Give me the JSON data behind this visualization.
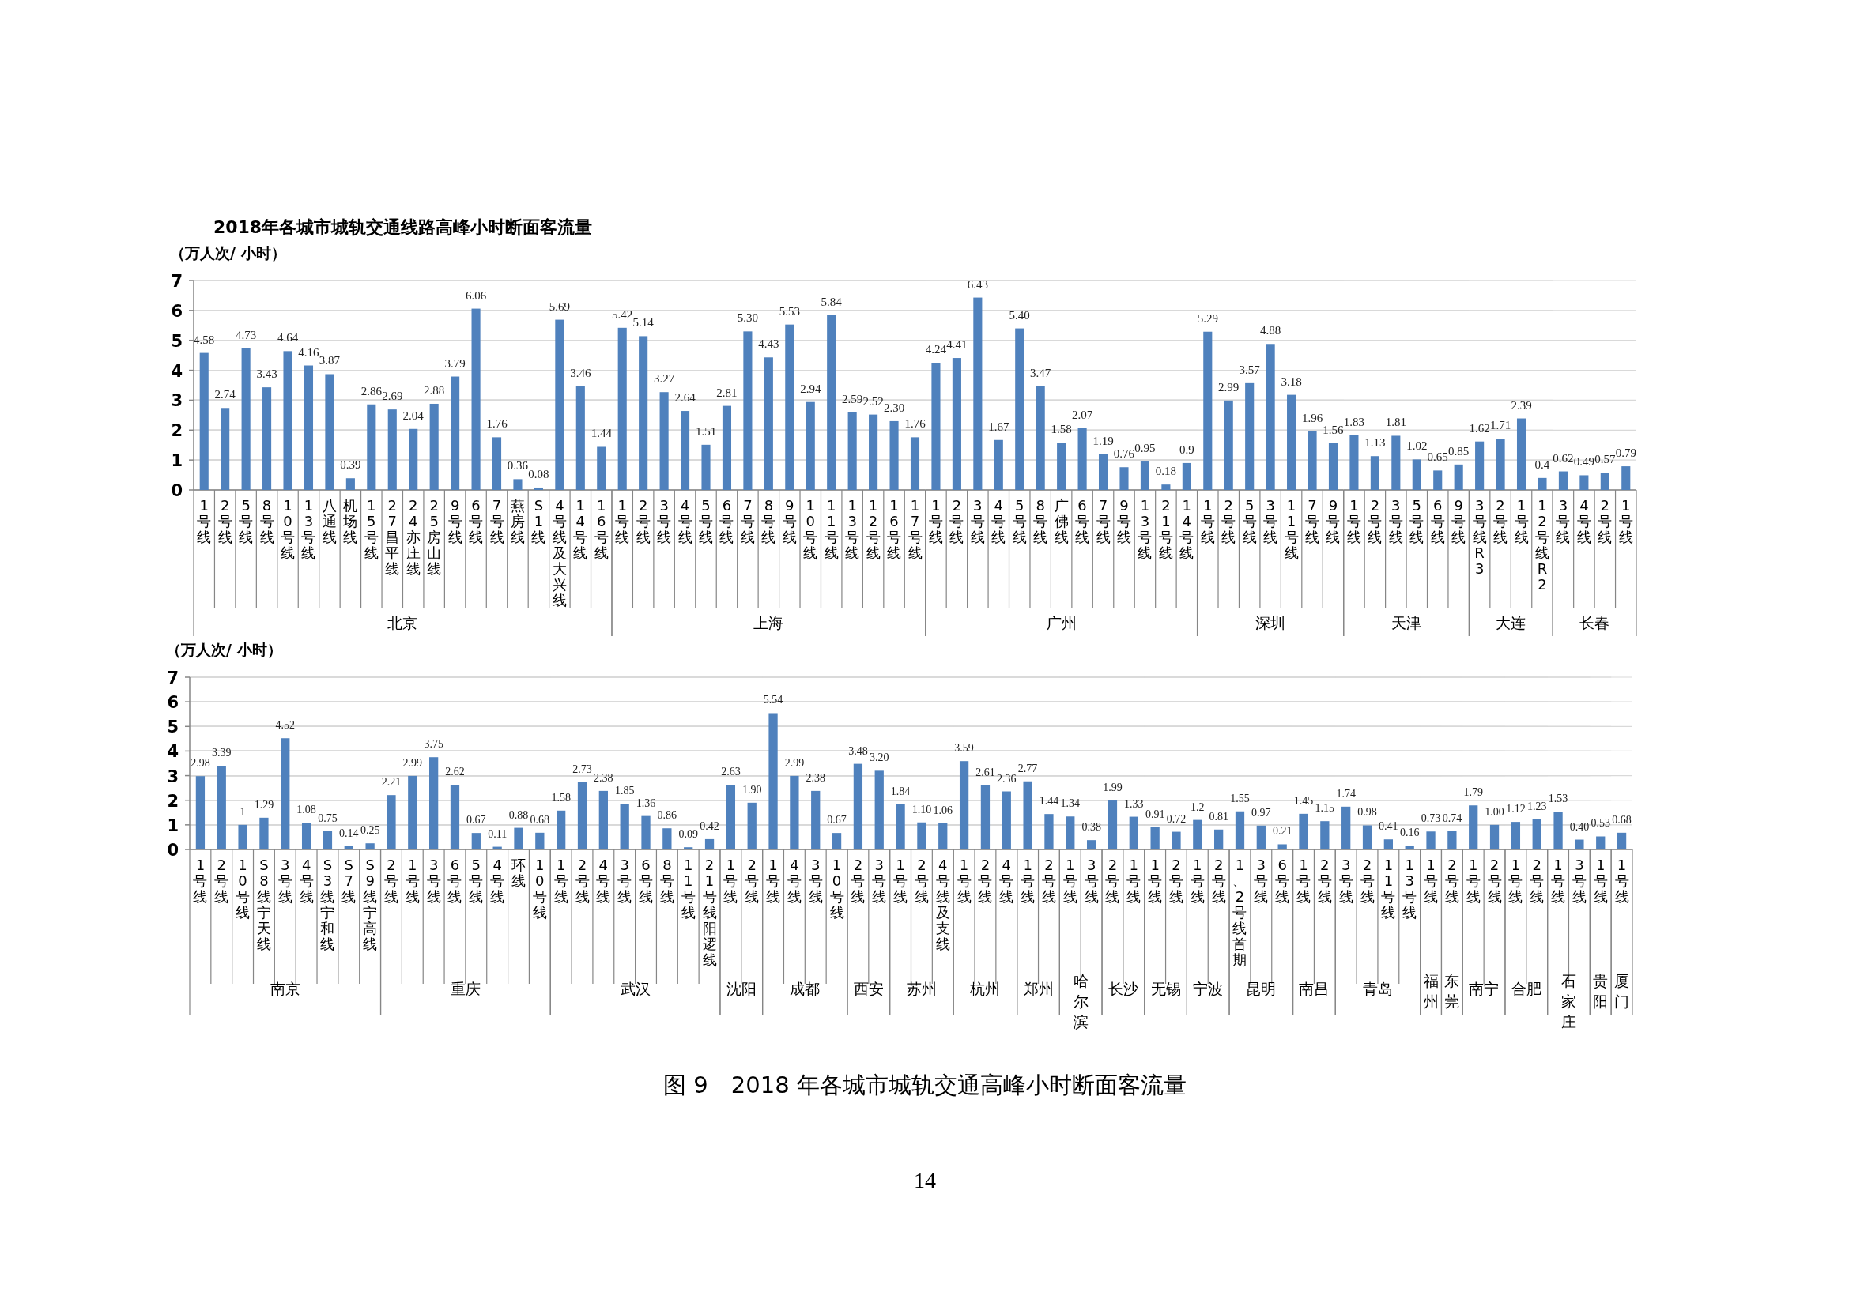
{
  "chart_data": [
    {
      "type": "bar",
      "title": "2018年各城市城轨交通线路高峰小时断面客流量",
      "ylabel": "（万人次/ 小时）",
      "xlabel": "北京",
      "color": "#4f81bd",
      "ylim": [
        0,
        7
      ],
      "yticks": [
        0,
        1,
        2,
        3,
        4,
        5,
        6,
        7
      ],
      "grid": "y",
      "categories": [
        "1号线",
        "2号线",
        "5号线",
        "8号线",
        "10号线",
        "13号线",
        "八通线",
        "机场线",
        "15号线",
        "27昌平线",
        "24亦庄线",
        "25房山线",
        "9号线",
        "6号线",
        "7号线",
        "燕房线",
        "S1线",
        "4号线及大兴线",
        "14号线",
        "16号线"
      ],
      "values": [
        4.58,
        2.74,
        4.73,
        3.43,
        4.64,
        4.16,
        3.87,
        0.39,
        2.86,
        2.69,
        2.04,
        2.88,
        3.79,
        6.06,
        1.76,
        0.36,
        0.08,
        5.69,
        3.46,
        1.44
      ],
      "value_labels": [
        "4.58",
        "2.74",
        "4.73",
        "3.43",
        "4.64",
        "4.16",
        "3.87",
        "0.39",
        "2.86",
        "2.69",
        "2.04",
        "2.88",
        "3.79",
        "6.06",
        "1.76",
        "0.36",
        "0.08",
        "5.69",
        "3.46",
        "1.44"
      ]
    },
    {
      "type": "bar",
      "xlabel": "上海",
      "color": "#4f81bd",
      "ylim": [
        0,
        7
      ],
      "yticks": [
        0,
        1,
        2,
        3,
        4,
        5,
        6,
        7
      ],
      "grid": "y",
      "tick_labels": "x",
      "categories": [
        "1号线",
        "2号线",
        "3号线",
        "4号线",
        "5号线",
        "6号线",
        "7号线",
        "8号线",
        "9号线",
        "10号线",
        "11号线",
        "13号线",
        "12号线",
        "16号线",
        "17号线"
      ],
      "values": [
        5.42,
        5.14,
        3.27,
        2.64,
        1.51,
        2.81,
        5.3,
        4.43,
        5.53,
        2.94,
        5.84,
        2.59,
        2.52,
        2.3,
        1.76
      ],
      "value_labels": [
        "5.42",
        "5.14",
        "3.27",
        "2.64",
        "1.51",
        "2.81",
        "5.30",
        "4.43",
        "5.53",
        "2.94",
        "5.84",
        "2.59",
        "2.52",
        "2.30",
        "1.76"
      ]
    },
    {
      "type": "bar",
      "xlabel": "广州",
      "color": "#4f81bd",
      "ylim": [
        0,
        7
      ],
      "yticks": [
        0,
        1,
        2,
        3,
        4,
        5,
        6,
        7
      ],
      "grid": "y",
      "tick_labels": "x",
      "categories": [
        "1号线",
        "2号线",
        "3号线",
        "4号线",
        "5号线",
        "8号线",
        "广佛线",
        "6号线",
        "7号线",
        "9号线",
        "13号线",
        "21号线",
        "14号线"
      ],
      "values": [
        4.24,
        4.41,
        6.43,
        1.67,
        5.4,
        3.47,
        1.58,
        2.07,
        1.19,
        0.76,
        0.95,
        0.18,
        0.9
      ],
      "value_labels": [
        "4.24",
        "4.41",
        "6.43",
        "1.67",
        "5.40",
        "3.47",
        "1.58",
        "2.07",
        "1.19",
        "0.76",
        "0.95",
        "0.18",
        "0.9"
      ]
    },
    {
      "type": "bar",
      "xlabel": "深圳",
      "color": "#4f81bd",
      "ylim": [
        0,
        7
      ],
      "yticks": [
        0,
        1,
        2,
        3,
        4,
        5,
        6,
        7
      ],
      "grid": "y",
      "tick_labels": "x",
      "categories": [
        "1号线",
        "2号线",
        "5号线",
        "3号线",
        "11号线",
        "7号线",
        "9号线"
      ],
      "values": [
        5.29,
        2.99,
        3.57,
        4.88,
        3.18,
        1.96,
        1.56
      ],
      "value_labels": [
        "5.29",
        "2.99",
        "3.57",
        "4.88",
        "3.18",
        "1.96",
        "1.56"
      ]
    },
    {
      "type": "bar",
      "xlabel": "天津",
      "color": "#4f81bd",
      "ylim": [
        0,
        7
      ],
      "yticks": [
        0,
        1,
        2,
        3,
        4,
        5,
        6,
        7
      ],
      "grid": "y",
      "tick_labels": "x",
      "categories": [
        "1号线",
        "2号线",
        "3号线",
        "5号线",
        "6号线",
        "9号线"
      ],
      "values": [
        1.83,
        1.13,
        1.81,
        1.02,
        0.65,
        0.85
      ],
      "value_labels": [
        "1.83",
        "1.13",
        "1.81",
        "1.02",
        "0.65",
        "0.85"
      ]
    },
    {
      "type": "bar",
      "xlabel": "大连",
      "color": "#4f81bd",
      "ylim": [
        0,
        7
      ],
      "yticks": [
        0,
        1,
        2,
        3,
        4,
        5,
        6,
        7
      ],
      "grid": "y",
      "tick_labels": "x",
      "categories": [
        "3号线R3",
        "2号线",
        "1号线",
        "12号线R2"
      ],
      "values": [
        1.62,
        1.71,
        2.39,
        0.4
      ],
      "value_labels": [
        "1.62",
        "1.71",
        "2.39",
        "0.4"
      ]
    },
    {
      "type": "bar",
      "xlabel": "长春",
      "color": "#4f81bd",
      "ylim": [
        0,
        7
      ],
      "yticks": [
        0,
        1,
        2,
        3,
        4,
        5,
        6,
        7
      ],
      "grid": "y",
      "tick_labels": "x",
      "categories": [
        "3号线",
        "4号线",
        "2号线",
        "1号线"
      ],
      "values": [
        0.62,
        0.49,
        0.57,
        0.79
      ],
      "value_labels": [
        "0.62",
        "0.49",
        "0.57",
        "0.79"
      ]
    },
    {
      "type": "bar",
      "ylabel": "（万人次/ 小时）",
      "xlabel": "南京",
      "color": "#4f81bd",
      "ylim": [
        0,
        7
      ],
      "yticks": [
        0,
        1,
        2,
        3,
        4,
        5,
        6,
        7
      ],
      "grid": "y",
      "categories": [
        "1号线",
        "2号线",
        "10号线",
        "S8线宁天线",
        "3号线",
        "4号线",
        "S3线宁和线",
        "S7线",
        "S9线宁高线"
      ],
      "values": [
        2.98,
        3.39,
        1,
        1.29,
        4.52,
        1.08,
        0.75,
        0.14,
        0.25
      ],
      "value_labels": [
        "2.98",
        "3.39",
        "1",
        "1.29",
        "4.52",
        "1.08",
        "0.75",
        "0.14",
        "0.25"
      ]
    },
    {
      "type": "bar",
      "xlabel": "重庆",
      "color": "#4f81bd",
      "ylim": [
        0,
        7
      ],
      "yticks": [
        0,
        1,
        2,
        3,
        4,
        5,
        6,
        7
      ],
      "grid": "y",
      "tick_labels": "x",
      "categories": [
        "2号线",
        "1号线",
        "3号线",
        "6号线",
        "5号线",
        "4号线",
        "环线",
        "10号线"
      ],
      "values": [
        2.21,
        2.99,
        3.75,
        2.62,
        0.67,
        0.11,
        0.88,
        0.68
      ],
      "value_labels": [
        "2.21",
        "2.99",
        "3.75",
        "2.62",
        "0.67",
        "0.11",
        "0.88",
        "0.68"
      ]
    },
    {
      "type": "bar",
      "xlabel": "武汉",
      "color": "#4f81bd",
      "ylim": [
        0,
        7
      ],
      "yticks": [
        0,
        1,
        2,
        3,
        4,
        5,
        6,
        7
      ],
      "grid": "y",
      "tick_labels": "x",
      "categories": [
        "1号线",
        "2号线",
        "4号线",
        "3号线",
        "6号线",
        "8号线",
        "11号线",
        "21号线阳逻线"
      ],
      "values": [
        1.58,
        2.73,
        2.38,
        1.85,
        1.36,
        0.86,
        0.09,
        0.42
      ],
      "value_labels": [
        "1.58",
        "2.73",
        "2.38",
        "1.85",
        "1.36",
        "0.86",
        "0.09",
        "0.42"
      ]
    },
    {
      "type": "bar",
      "xlabel": "沈阳",
      "color": "#4f81bd",
      "ylim": [
        0,
        7
      ],
      "yticks": [
        0,
        1,
        2,
        3,
        4,
        5,
        6,
        7
      ],
      "grid": "y",
      "tick_labels": "x",
      "categories": [
        "1号线",
        "2号线"
      ],
      "values": [
        2.63,
        1.9
      ],
      "value_labels": [
        "2.63",
        "1.90"
      ]
    },
    {
      "type": "bar",
      "xlabel": "成都",
      "color": "#4f81bd",
      "ylim": [
        0,
        7
      ],
      "yticks": [
        0,
        1,
        2,
        3,
        4,
        5,
        6,
        7
      ],
      "grid": "y",
      "tick_labels": "x",
      "categories": [
        "1号线",
        "4号线",
        "3号线",
        "10号线"
      ],
      "values": [
        5.54,
        2.99,
        2.38,
        0.67
      ],
      "value_labels": [
        "5.54",
        "2.99",
        "2.38",
        "0.67"
      ]
    },
    {
      "type": "bar",
      "xlabel": "西安",
      "color": "#4f81bd",
      "ylim": [
        0,
        7
      ],
      "yticks": [
        0,
        1,
        2,
        3,
        4,
        5,
        6,
        7
      ],
      "grid": "y",
      "tick_labels": "x",
      "categories": [
        "2号线",
        "3号线"
      ],
      "values": [
        3.48,
        3.2
      ],
      "value_labels": [
        "3.48",
        "3.20"
      ]
    },
    {
      "type": "bar",
      "xlabel": "苏州",
      "color": "#4f81bd",
      "ylim": [
        0,
        7
      ],
      "yticks": [
        0,
        1,
        2,
        3,
        4,
        5,
        6,
        7
      ],
      "grid": "y",
      "tick_labels": "x",
      "categories": [
        "1号线",
        "2号线",
        "4号线及支线"
      ],
      "values": [
        1.84,
        1.1,
        1.06
      ],
      "value_labels": [
        "1.84",
        "1.10",
        "1.06"
      ]
    },
    {
      "type": "bar",
      "xlabel": "杭州",
      "color": "#4f81bd",
      "ylim": [
        0,
        7
      ],
      "yticks": [
        0,
        1,
        2,
        3,
        4,
        5,
        6,
        7
      ],
      "grid": "y",
      "tick_labels": "x",
      "categories": [
        "1号线",
        "2号线",
        "4号线"
      ],
      "values": [
        3.59,
        2.61,
        2.36
      ],
      "value_labels": [
        "3.59",
        "2.61",
        "2.36"
      ]
    },
    {
      "type": "bar",
      "xlabel": "郑州",
      "color": "#4f81bd",
      "ylim": [
        0,
        7
      ],
      "yticks": [
        0,
        1,
        2,
        3,
        4,
        5,
        6,
        7
      ],
      "grid": "y",
      "tick_labels": "x",
      "categories": [
        "1号线",
        "2号线"
      ],
      "values": [
        2.77,
        1.44
      ],
      "value_labels": [
        "2.77",
        "1.44"
      ]
    },
    {
      "type": "bar",
      "xlabel": "哈尔滨",
      "color": "#4f81bd",
      "ylim": [
        0,
        7
      ],
      "yticks": [
        0,
        1,
        2,
        3,
        4,
        5,
        6,
        7
      ],
      "grid": "y",
      "tick_labels": "x",
      "categories": [
        "1号线",
        "3号线"
      ],
      "values": [
        1.34,
        0.38
      ],
      "value_labels": [
        "1.34",
        "0.38"
      ]
    },
    {
      "type": "bar",
      "xlabel": "长沙",
      "color": "#4f81bd",
      "ylim": [
        0,
        7
      ],
      "yticks": [
        0,
        1,
        2,
        3,
        4,
        5,
        6,
        7
      ],
      "grid": "y",
      "tick_labels": "x",
      "categories": [
        "2号线",
        "1号线"
      ],
      "values": [
        1.99,
        1.33
      ],
      "value_labels": [
        "1.99",
        "1.33"
      ]
    },
    {
      "type": "bar",
      "xlabel": "无锡",
      "color": "#4f81bd",
      "ylim": [
        0,
        7
      ],
      "yticks": [
        0,
        1,
        2,
        3,
        4,
        5,
        6,
        7
      ],
      "grid": "y",
      "tick_labels": "x",
      "categories": [
        "1号线",
        "2号线"
      ],
      "values": [
        0.91,
        0.72
      ],
      "value_labels": [
        "0.91",
        "0.72"
      ]
    },
    {
      "type": "bar",
      "xlabel": "宁波",
      "color": "#4f81bd",
      "ylim": [
        0,
        7
      ],
      "yticks": [
        0,
        1,
        2,
        3,
        4,
        5,
        6,
        7
      ],
      "grid": "y",
      "tick_labels": "x",
      "categories": [
        "1号线",
        "2号线"
      ],
      "values": [
        1.2,
        0.81
      ],
      "value_labels": [
        "1.2",
        "0.81"
      ]
    },
    {
      "type": "bar",
      "xlabel": "昆明",
      "color": "#4f81bd",
      "ylim": [
        0,
        7
      ],
      "yticks": [
        0,
        1,
        2,
        3,
        4,
        5,
        6,
        7
      ],
      "grid": "y",
      "tick_labels": "x",
      "categories": [
        "1、2号线首期",
        "3号线",
        "6号线"
      ],
      "values": [
        1.55,
        0.97,
        0.21
      ],
      "value_labels": [
        "1.55",
        "0.97",
        "0.21"
      ]
    },
    {
      "type": "bar",
      "xlabel": "南昌",
      "color": "#4f81bd",
      "ylim": [
        0,
        7
      ],
      "yticks": [
        0,
        1,
        2,
        3,
        4,
        5,
        6,
        7
      ],
      "grid": "y",
      "tick_labels": "x",
      "categories": [
        "1号线",
        "2号线"
      ],
      "values": [
        1.45,
        1.15
      ],
      "value_labels": [
        "1.45",
        "1.15"
      ]
    },
    {
      "type": "bar",
      "xlabel": "青岛",
      "color": "#4f81bd",
      "ylim": [
        0,
        7
      ],
      "yticks": [
        0,
        1,
        2,
        3,
        4,
        5,
        6,
        7
      ],
      "grid": "y",
      "tick_labels": "x",
      "categories": [
        "3号线",
        "2号线",
        "11号线",
        "13号线"
      ],
      "values": [
        1.74,
        0.98,
        0.41,
        0.16
      ],
      "value_labels": [
        "1.74",
        "0.98",
        "0.41",
        "0.16"
      ]
    },
    {
      "type": "bar",
      "xlabel": "福州",
      "color": "#4f81bd",
      "ylim": [
        0,
        7
      ],
      "yticks": [
        0,
        1,
        2,
        3,
        4,
        5,
        6,
        7
      ],
      "grid": "y",
      "tick_labels": "x",
      "categories": [
        "1号线"
      ],
      "values": [
        0.73
      ],
      "value_labels": [
        "0.73"
      ]
    },
    {
      "type": "bar",
      "xlabel": "东莞",
      "color": "#4f81bd",
      "ylim": [
        0,
        7
      ],
      "yticks": [
        0,
        1,
        2,
        3,
        4,
        5,
        6,
        7
      ],
      "grid": "y",
      "tick_labels": "x",
      "categories": [
        "2号线"
      ],
      "values": [
        0.74
      ],
      "value_labels": [
        "0.74"
      ]
    },
    {
      "type": "bar",
      "xlabel": "南宁",
      "color": "#4f81bd",
      "ylim": [
        0,
        7
      ],
      "yticks": [
        0,
        1,
        2,
        3,
        4,
        5,
        6,
        7
      ],
      "grid": "y",
      "tick_labels": "x",
      "categories": [
        "1号线",
        "2号线"
      ],
      "values": [
        1.79,
        1.0
      ],
      "value_labels": [
        "1.79",
        "1.00"
      ]
    },
    {
      "type": "bar",
      "xlabel": "合肥",
      "color": "#4f81bd",
      "ylim": [
        0,
        7
      ],
      "yticks": [
        0,
        1,
        2,
        3,
        4,
        5,
        6,
        7
      ],
      "grid": "y",
      "tick_labels": "x",
      "categories": [
        "1号线",
        "2号线"
      ],
      "values": [
        1.12,
        1.23
      ],
      "value_labels": [
        "1.12",
        "1.23"
      ]
    },
    {
      "type": "bar",
      "xlabel": "石家庄",
      "color": "#4f81bd",
      "ylim": [
        0,
        7
      ],
      "yticks": [
        0,
        1,
        2,
        3,
        4,
        5,
        6,
        7
      ],
      "grid": "y",
      "tick_labels": "x",
      "categories": [
        "1号线",
        "3号线"
      ],
      "values": [
        1.53,
        0.4
      ],
      "value_labels": [
        "1.53",
        "0.40"
      ]
    },
    {
      "type": "bar",
      "xlabel": "贵阳",
      "color": "#4f81bd",
      "ylim": [
        0,
        7
      ],
      "yticks": [
        0,
        1,
        2,
        3,
        4,
        5,
        6,
        7
      ],
      "grid": "y",
      "tick_labels": "x",
      "categories": [
        "1号线"
      ],
      "values": [
        0.53
      ],
      "value_labels": [
        "0.53"
      ]
    },
    {
      "type": "bar",
      "xlabel": "厦门",
      "color": "#4f81bd",
      "ylim": [
        0,
        7
      ],
      "yticks": [
        0,
        1,
        2,
        3,
        4,
        5,
        6,
        7
      ],
      "grid": "y",
      "tick_labels": "x",
      "categories": [
        "1号线"
      ],
      "values": [
        0.68
      ],
      "value_labels": [
        "0.68"
      ],
      "annotations": [
        "图 9　2018 年各城市城轨交通高峰小时断面客流量",
        "14"
      ]
    }
  ]
}
